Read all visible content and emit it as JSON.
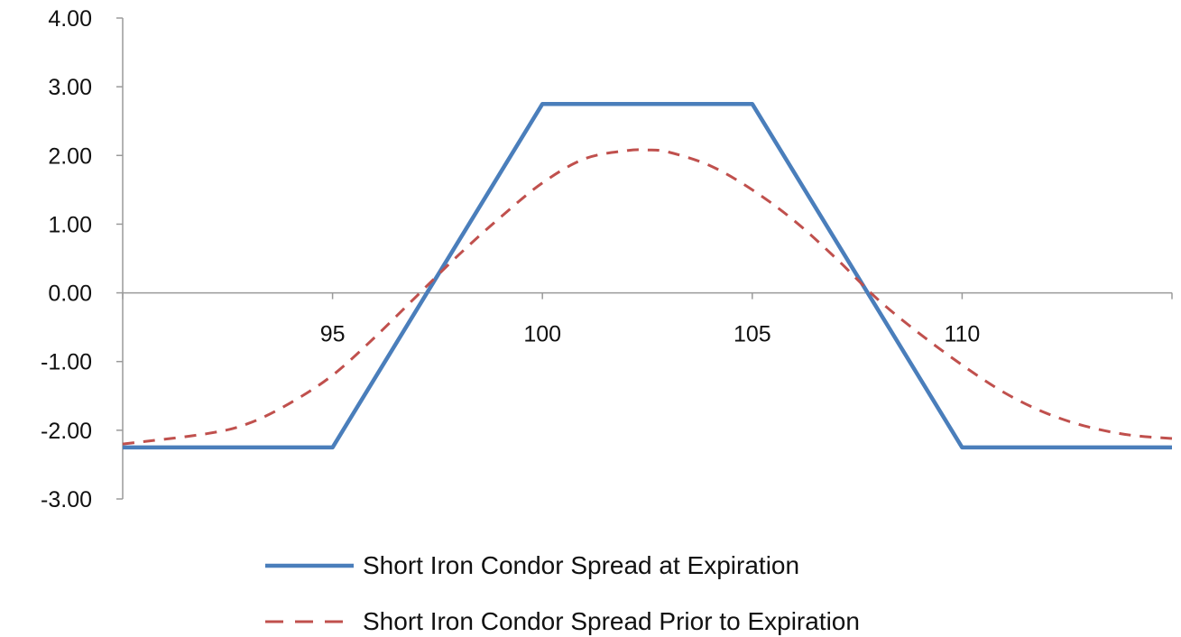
{
  "chart_data": {
    "type": "line",
    "title": "",
    "xlabel": "",
    "ylabel": "",
    "xlim": [
      90,
      115
    ],
    "ylim": [
      -3,
      4
    ],
    "y_ticks": [
      "4.00",
      "3.00",
      "2.00",
      "1.00",
      "0.00",
      "-1.00",
      "-2.00",
      "-3.00"
    ],
    "x_ticks": [
      "95",
      "100",
      "105",
      "110"
    ],
    "grid": false,
    "legend_position": "bottom",
    "series": [
      {
        "name": "Short Iron Condor Spread at Expiration",
        "color": "#4a7ebb",
        "style": "solid",
        "x": [
          90,
          95,
          100,
          105,
          110,
          115
        ],
        "y": [
          -2.25,
          -2.25,
          2.75,
          2.75,
          -2.25,
          -2.25
        ]
      },
      {
        "name": "Short Iron Condor Spread Prior to Expiration",
        "color": "#c0504d",
        "style": "dashed",
        "x": [
          90,
          92,
          93,
          94,
          95,
          96,
          97,
          98,
          99,
          100,
          101,
          102,
          102.5,
          103,
          104,
          105,
          106,
          107,
          108,
          109,
          110,
          111,
          112,
          113,
          114,
          115
        ],
        "y": [
          -2.2,
          -2.05,
          -1.9,
          -1.6,
          -1.2,
          -0.65,
          -0.05,
          0.55,
          1.1,
          1.6,
          1.95,
          2.07,
          2.08,
          2.05,
          1.85,
          1.5,
          1.05,
          0.5,
          -0.1,
          -0.6,
          -1.05,
          -1.45,
          -1.75,
          -1.95,
          -2.07,
          -2.12
        ]
      }
    ]
  }
}
